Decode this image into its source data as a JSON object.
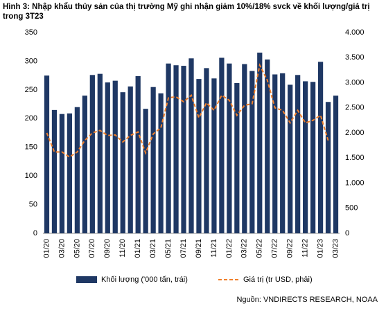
{
  "chart_data": {
    "type": "bar_line",
    "title": "Hình 3: Nhập khẩu thủy sản của thị trường Mỹ ghi nhận giảm 10%/18% svck về khối lượng/giá trị trong 3T23",
    "categories": [
      "01/20",
      null,
      "03/20",
      null,
      "05/20",
      null,
      "07/20",
      null,
      "09/20",
      null,
      "11/20",
      null,
      "01/21",
      null,
      "03/21",
      null,
      "05/21",
      null,
      "07/21",
      null,
      "09/21",
      null,
      "11/21",
      null,
      "01/22",
      null,
      "03/22",
      null,
      "05/22",
      null,
      "07/22",
      null,
      "09/22",
      null,
      "11/22",
      null,
      "01/23",
      null,
      "03/23"
    ],
    "series": [
      {
        "name": "Khối lượng ('000 tấn, trái)",
        "color": "#1f3864",
        "type": "bar",
        "values": [
          275,
          215,
          208,
          209,
          220,
          240,
          276,
          278,
          263,
          266,
          246,
          256,
          274,
          217,
          255,
          244,
          296,
          293,
          292,
          305,
          269,
          288,
          270,
          306,
          296,
          262,
          295,
          283,
          315,
          303,
          277,
          279,
          259,
          276,
          265,
          264,
          299,
          229,
          240
        ]
      },
      {
        "name": "Giá trị (tr USD, phải)",
        "color": "#f07f2a",
        "type": "line",
        "axis": "y2",
        "values": [
          2000,
          1620,
          1620,
          1520,
          1620,
          1850,
          2000,
          2050,
          1950,
          1960,
          1820,
          1950,
          2020,
          1600,
          1980,
          2100,
          2700,
          2720,
          2620,
          2750,
          2300,
          2600,
          2450,
          2750,
          2650,
          2350,
          2550,
          2580,
          3350,
          3050,
          2500,
          2450,
          2200,
          2450,
          2200,
          2250,
          2350,
          1850,
          null
        ]
      }
    ],
    "ylim": [
      0,
      350
    ],
    "yticks": [
      0,
      50,
      100,
      150,
      200,
      250,
      300,
      350
    ],
    "y2lim": [
      0,
      4000
    ],
    "y2ticks": [
      0,
      500,
      {
        "value": 1000,
        "label": "1.000"
      },
      {
        "value": 1500,
        "label": "1.500"
      },
      {
        "value": 2000,
        "label": "2.000"
      },
      {
        "value": 2500,
        "label": "2.500"
      },
      {
        "value": 3000,
        "label": "3.000"
      },
      {
        "value": 3500,
        "label": "3.500"
      },
      {
        "value": 4000,
        "label": "4.000"
      }
    ],
    "source": "Nguồn: VNDIRECTS RESEARCH, NOAA"
  }
}
